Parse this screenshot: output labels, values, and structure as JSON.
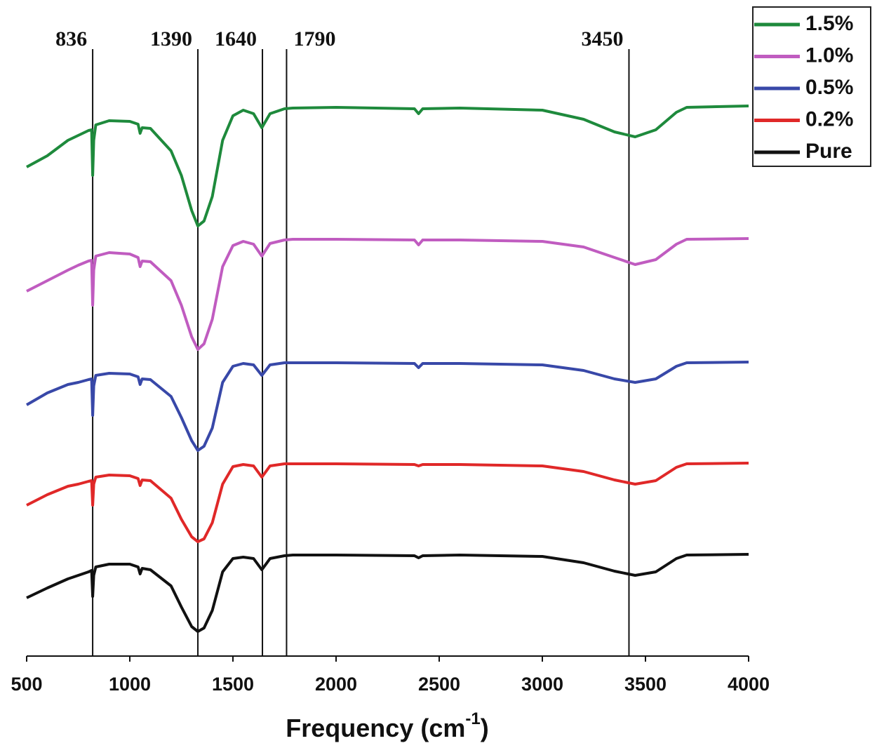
{
  "chart_data": {
    "type": "line",
    "xlabel": "Frequency (cm",
    "xlabel_sup": "-1",
    "xlabel_end": ")",
    "xlim": [
      500,
      4000
    ],
    "xticks": [
      500,
      1000,
      1500,
      2000,
      2500,
      3000,
      3500,
      4000
    ],
    "ylim": [
      0,
      935
    ],
    "legend": "top-right",
    "x": [
      500,
      600,
      700,
      750,
      800,
      815,
      820,
      825,
      835,
      900,
      1000,
      1040,
      1050,
      1060,
      1100,
      1200,
      1250,
      1300,
      1330,
      1360,
      1400,
      1450,
      1500,
      1550,
      1600,
      1640,
      1680,
      1750,
      1790,
      2000,
      2380,
      2400,
      2420,
      2600,
      3000,
      3200,
      3350,
      3450,
      3550,
      3650,
      3700,
      4000
    ],
    "series": [
      {
        "name": "1.5%",
        "color": "#1e8a3c",
        "values": [
          697,
          713,
          735,
          742,
          749,
          750,
          685,
          735,
          757,
          763,
          762,
          758,
          745,
          753,
          752,
          720,
          685,
          635,
          613,
          620,
          655,
          735,
          770,
          778,
          773,
          753,
          773,
          780,
          781,
          782,
          780,
          773,
          780,
          781,
          778,
          765,
          747,
          740,
          750,
          775,
          782,
          784
        ]
      },
      {
        "name": "1.0%",
        "color": "#c05cc0",
        "values": [
          520,
          535,
          550,
          557,
          563,
          564,
          500,
          550,
          570,
          575,
          573,
          568,
          555,
          563,
          562,
          535,
          500,
          455,
          437,
          445,
          480,
          555,
          585,
          591,
          587,
          570,
          588,
          593,
          594,
          594,
          593,
          586,
          593,
          593,
          591,
          583,
          568,
          558,
          565,
          587,
          594,
          595
        ]
      },
      {
        "name": "0.5%",
        "color": "#3848a8",
        "values": [
          358,
          375,
          387,
          390,
          394,
          395,
          343,
          385,
          400,
          403,
          402,
          398,
          387,
          395,
          394,
          370,
          340,
          307,
          293,
          299,
          325,
          390,
          413,
          417,
          415,
          400,
          415,
          418,
          418,
          418,
          417,
          411,
          417,
          417,
          415,
          407,
          395,
          390,
          395,
          413,
          418,
          419
        ]
      },
      {
        "name": "0.2%",
        "color": "#e02828",
        "values": [
          215,
          230,
          242,
          245,
          249,
          250,
          215,
          245,
          255,
          258,
          257,
          253,
          243,
          251,
          250,
          225,
          195,
          170,
          163,
          167,
          190,
          245,
          270,
          273,
          271,
          255,
          271,
          274,
          274,
          274,
          273,
          271,
          273,
          273,
          271,
          263,
          251,
          245,
          250,
          269,
          274,
          275
        ]
      },
      {
        "name": "Pure",
        "color": "#111111",
        "values": [
          83,
          97,
          110,
          115,
          120,
          122,
          85,
          115,
          127,
          131,
          131,
          127,
          117,
          125,
          123,
          100,
          70,
          42,
          35,
          40,
          65,
          120,
          139,
          141,
          139,
          123,
          139,
          143,
          144,
          144,
          143,
          140,
          143,
          144,
          142,
          133,
          121,
          115,
          120,
          139,
          144,
          145
        ]
      }
    ],
    "markers": [
      {
        "label": "836",
        "x": 820
      },
      {
        "label": "1390",
        "x": 1330
      },
      {
        "label": "1640",
        "x": 1643
      },
      {
        "label": "1790",
        "x": 1760
      },
      {
        "label": "3450",
        "x": 3420
      }
    ]
  }
}
